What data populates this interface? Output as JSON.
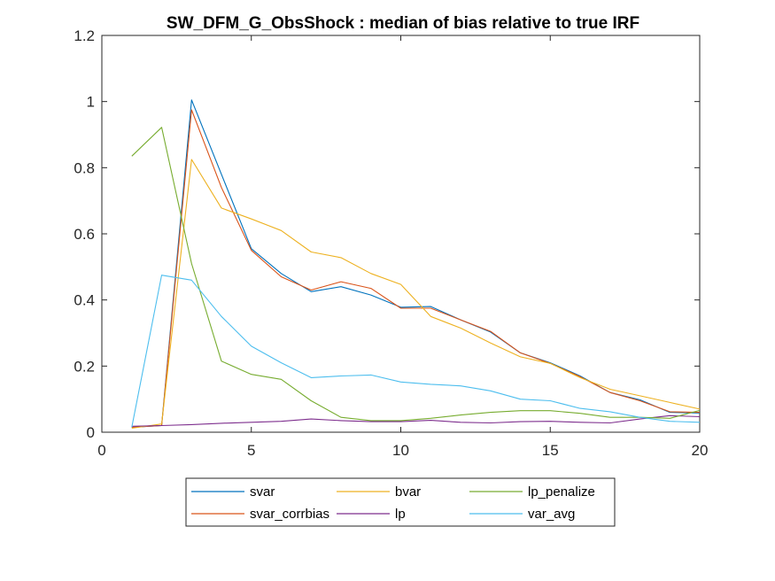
{
  "chart_data": {
    "type": "line",
    "title": "SW_DFM_G_ObsShock : median of bias relative to true IRF",
    "xlabel": "",
    "ylabel": "",
    "xlim": [
      0,
      20
    ],
    "ylim": [
      0,
      1.2
    ],
    "xticks": [
      0,
      5,
      10,
      15,
      20
    ],
    "xtick_labels": [
      "0",
      "5",
      "10",
      "15",
      "20"
    ],
    "yticks": [
      0,
      0.2,
      0.4,
      0.6,
      0.8,
      1,
      1.2
    ],
    "ytick_labels": [
      "0",
      "0.2",
      "0.4",
      "0.6",
      "0.8",
      "1",
      "1.2"
    ],
    "grid": false,
    "legend_position": "bottom, outside plot, 3 columns",
    "x": [
      1,
      2,
      3,
      4,
      5,
      6,
      7,
      8,
      9,
      10,
      11,
      12,
      13,
      14,
      15,
      16,
      17,
      18,
      19,
      20
    ],
    "series": [
      {
        "name": "svar",
        "color": "#0072BD",
        "values": [
          0.015,
          0.02,
          1.005,
          0.78,
          0.555,
          0.48,
          0.425,
          0.44,
          0.415,
          0.378,
          0.38,
          0.34,
          0.303,
          0.24,
          0.21,
          0.17,
          0.12,
          0.098,
          0.06,
          0.058
        ]
      },
      {
        "name": "svar_corrbias",
        "color": "#D95319",
        "values": [
          0.015,
          0.02,
          0.975,
          0.74,
          0.55,
          0.47,
          0.43,
          0.455,
          0.435,
          0.375,
          0.375,
          0.34,
          0.305,
          0.24,
          0.208,
          0.168,
          0.12,
          0.095,
          0.062,
          0.06
        ]
      },
      {
        "name": "bvar",
        "color": "#EDB120",
        "values": [
          0.012,
          0.025,
          0.825,
          0.678,
          0.645,
          0.61,
          0.545,
          0.528,
          0.48,
          0.447,
          0.35,
          0.315,
          0.27,
          0.228,
          0.208,
          0.165,
          0.13,
          0.11,
          0.09,
          0.07
        ]
      },
      {
        "name": "lp",
        "color": "#7E2F8E",
        "values": [
          0.018,
          0.02,
          0.023,
          0.027,
          0.03,
          0.033,
          0.04,
          0.035,
          0.032,
          0.032,
          0.036,
          0.03,
          0.028,
          0.032,
          0.033,
          0.03,
          0.028,
          0.04,
          0.05,
          0.047
        ]
      },
      {
        "name": "lp_penalize",
        "color": "#77AC30",
        "values": [
          0.835,
          0.922,
          0.51,
          0.215,
          0.175,
          0.16,
          0.095,
          0.045,
          0.035,
          0.035,
          0.042,
          0.052,
          0.06,
          0.065,
          0.065,
          0.057,
          0.045,
          0.045,
          0.042,
          0.066
        ]
      },
      {
        "name": "var_avg",
        "color": "#4DBEEE",
        "values": [
          0.015,
          0.475,
          0.46,
          0.35,
          0.26,
          0.21,
          0.165,
          0.17,
          0.173,
          0.152,
          0.145,
          0.14,
          0.125,
          0.1,
          0.095,
          0.072,
          0.062,
          0.045,
          0.033,
          0.03
        ]
      }
    ],
    "legend_order": [
      "svar",
      "bvar",
      "lp_penalize",
      "svar_corrbias",
      "lp",
      "var_avg"
    ]
  }
}
